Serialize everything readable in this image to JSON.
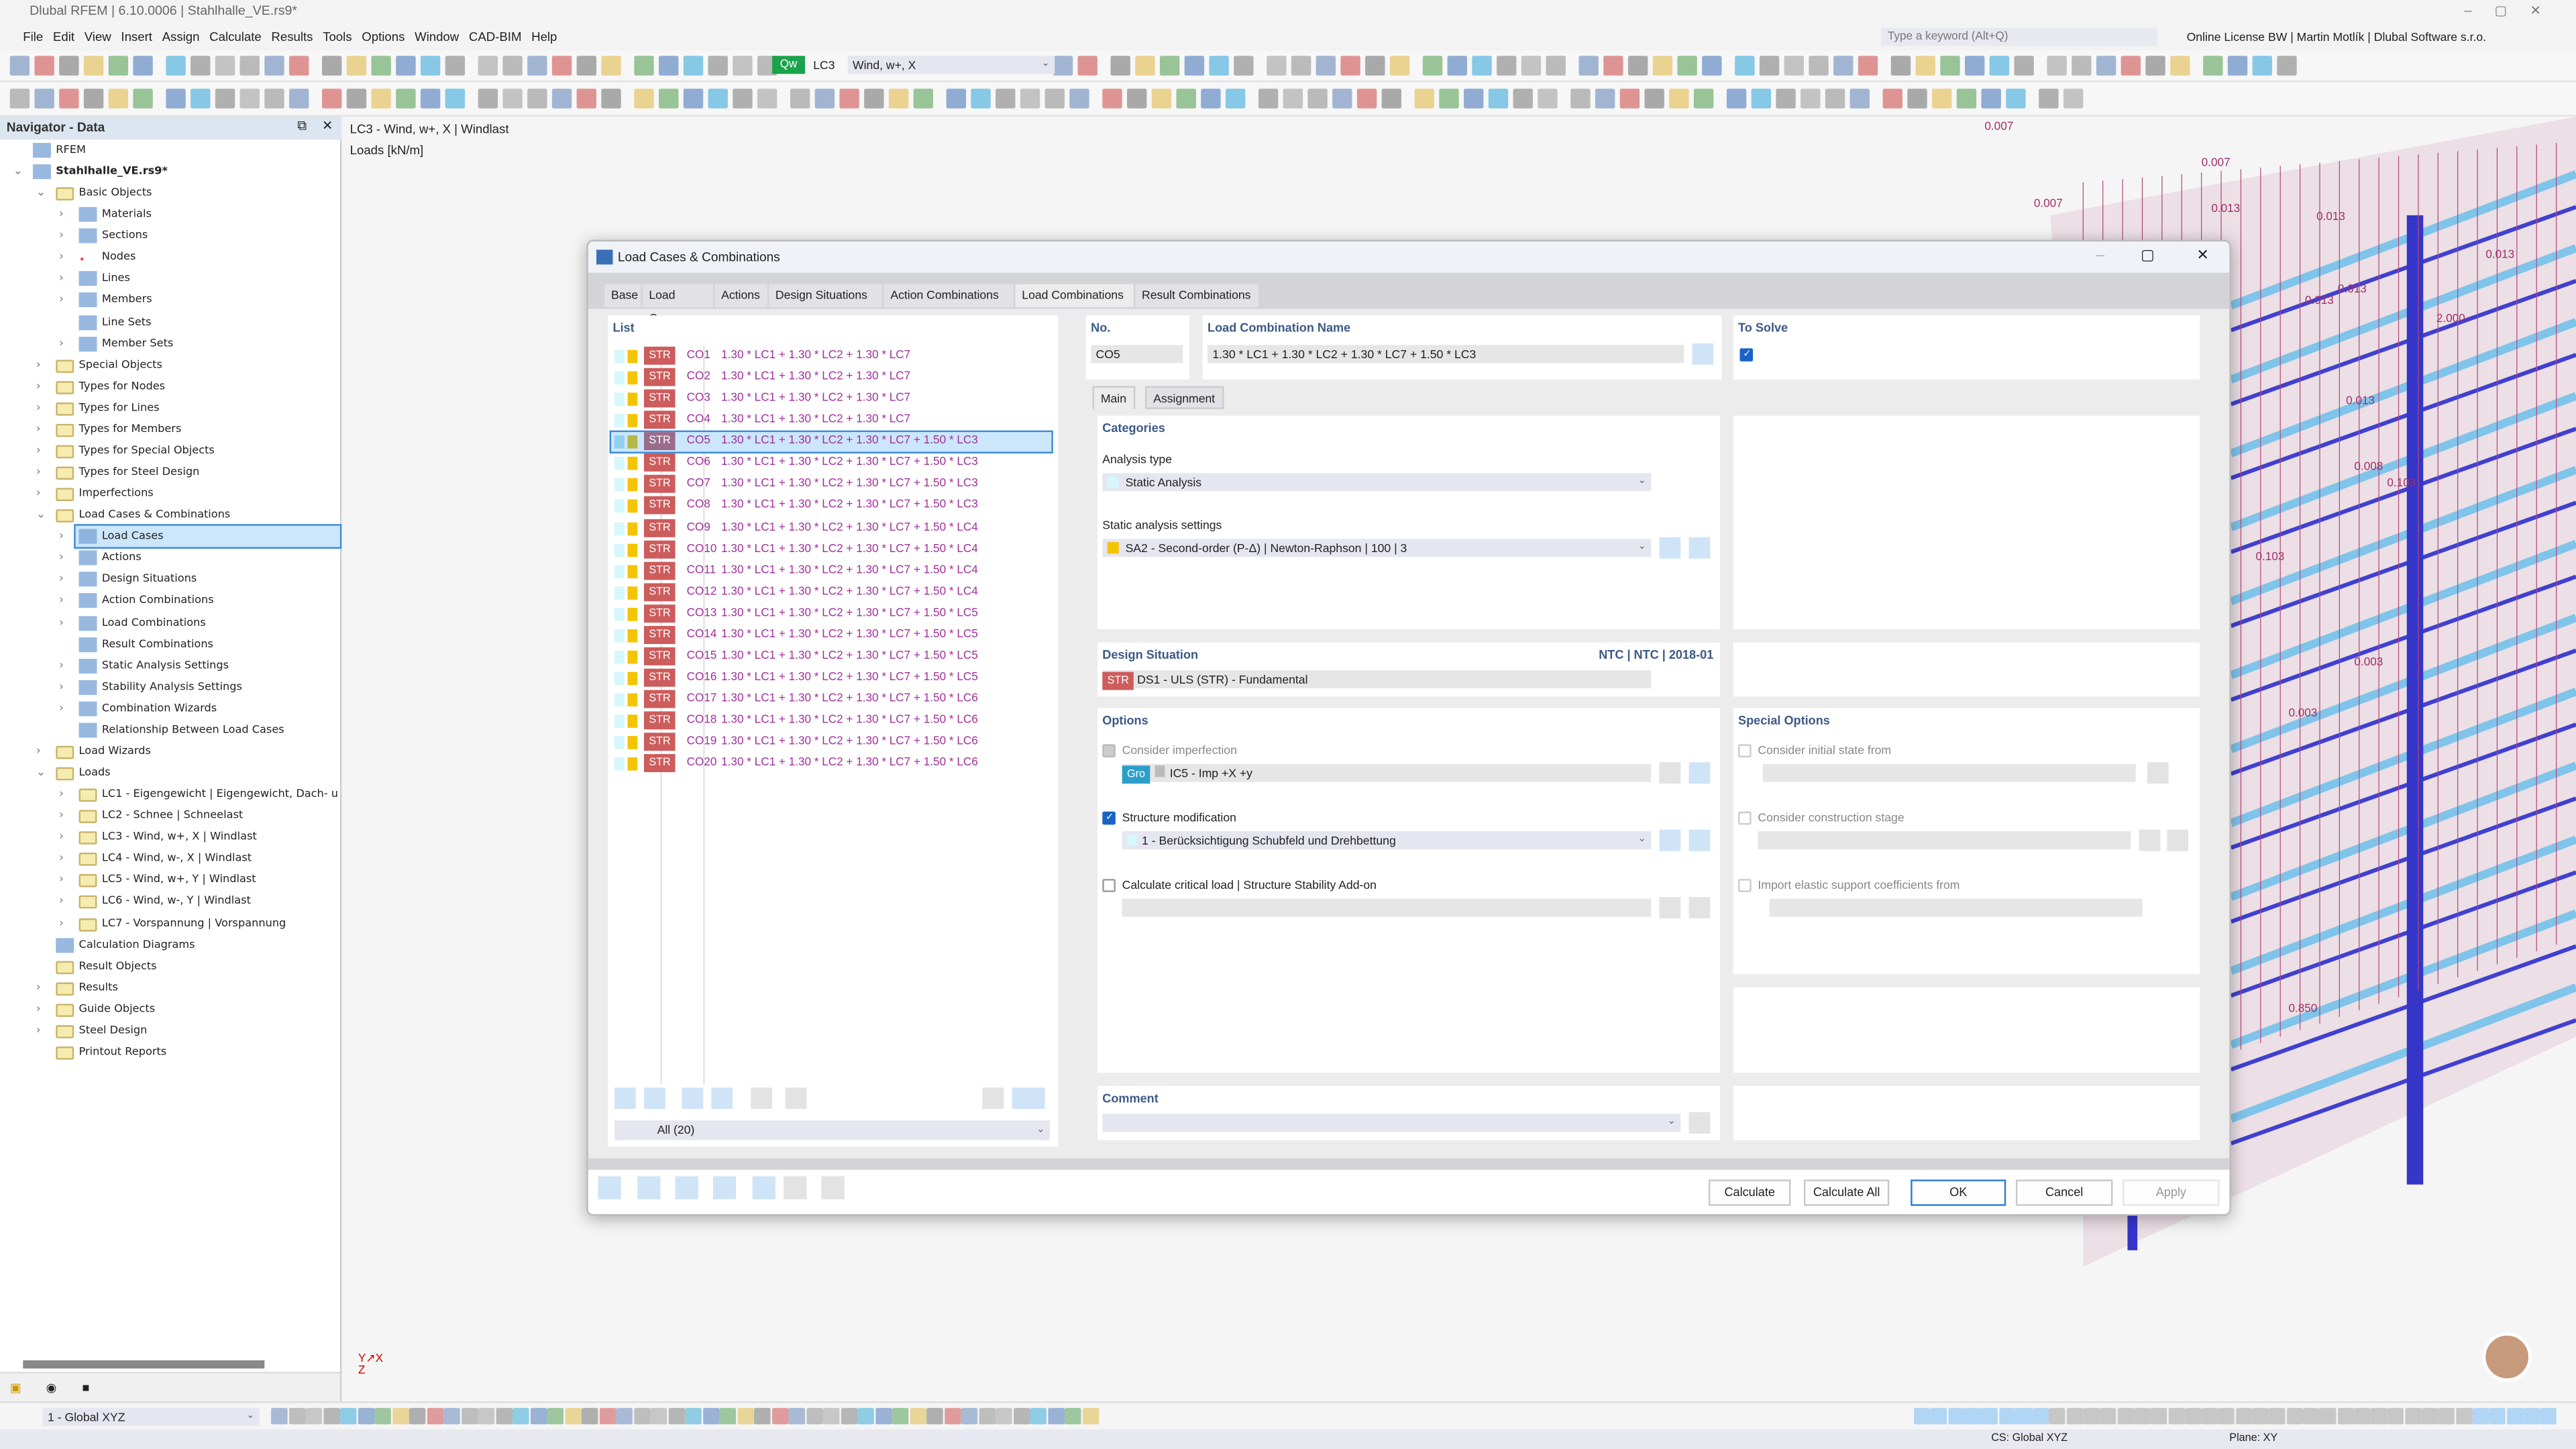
{
  "app": {
    "title": "Dlubal RFEM | 6.10.0006 | Stahlhalle_VE.rs9*",
    "menu": [
      "File",
      "Edit",
      "View",
      "Insert",
      "Assign",
      "Calculate",
      "Results",
      "Tools",
      "Options",
      "Window",
      "CAD-BIM",
      "Help"
    ],
    "search_placeholder": "Type a keyword (Alt+Q)",
    "license": "Online License BW | Martin Motlík | Dlubal Software s.r.o.",
    "lc_badge": "Qw",
    "lc_id": "LC3",
    "lc_name": "Wind, w+, X"
  },
  "navigator": {
    "title": "Navigator - Data",
    "items": [
      {
        "label": "RFEM",
        "lvl": 0,
        "chev": "",
        "icon": "rfem"
      },
      {
        "label": "Stahlhalle_VE.rs9*",
        "lvl": 0,
        "chev": "open",
        "icon": "model",
        "bold": true
      },
      {
        "label": "Basic Objects",
        "lvl": 1,
        "chev": "open",
        "icon": "folder"
      },
      {
        "label": "Materials",
        "lvl": 2,
        "chev": "closed",
        "icon": "materials"
      },
      {
        "label": "Sections",
        "lvl": 2,
        "chev": "closed",
        "icon": "sections"
      },
      {
        "label": "Nodes",
        "lvl": 2,
        "chev": "closed",
        "icon": "nodes"
      },
      {
        "label": "Lines",
        "lvl": 2,
        "chev": "closed",
        "icon": "lines"
      },
      {
        "label": "Members",
        "lvl": 2,
        "chev": "closed",
        "icon": "members"
      },
      {
        "label": "Line Sets",
        "lvl": 2,
        "chev": "",
        "icon": "line-sets"
      },
      {
        "label": "Member Sets",
        "lvl": 2,
        "chev": "closed",
        "icon": "member-sets"
      },
      {
        "label": "Special Objects",
        "lvl": 1,
        "chev": "closed",
        "icon": "folder"
      },
      {
        "label": "Types for Nodes",
        "lvl": 1,
        "chev": "closed",
        "icon": "folder"
      },
      {
        "label": "Types for Lines",
        "lvl": 1,
        "chev": "closed",
        "icon": "folder"
      },
      {
        "label": "Types for Members",
        "lvl": 1,
        "chev": "closed",
        "icon": "folder"
      },
      {
        "label": "Types for Special Objects",
        "lvl": 1,
        "chev": "closed",
        "icon": "folder"
      },
      {
        "label": "Types for Steel Design",
        "lvl": 1,
        "chev": "closed",
        "icon": "folder"
      },
      {
        "label": "Imperfections",
        "lvl": 1,
        "chev": "closed",
        "icon": "folder"
      },
      {
        "label": "Load Cases & Combinations",
        "lvl": 1,
        "chev": "open",
        "icon": "folder"
      },
      {
        "label": "Load Cases",
        "lvl": 2,
        "chev": "closed",
        "icon": "load-cases",
        "selected": true
      },
      {
        "label": "Actions",
        "lvl": 2,
        "chev": "closed",
        "icon": "actions"
      },
      {
        "label": "Design Situations",
        "lvl": 2,
        "chev": "closed",
        "icon": "design-situations"
      },
      {
        "label": "Action Combinations",
        "lvl": 2,
        "chev": "closed",
        "icon": "action-combinations"
      },
      {
        "label": "Load Combinations",
        "lvl": 2,
        "chev": "closed",
        "icon": "load-combinations"
      },
      {
        "label": "Result Combinations",
        "lvl": 2,
        "chev": "",
        "icon": "result-combinations"
      },
      {
        "label": "Static Analysis Settings",
        "lvl": 2,
        "chev": "closed",
        "icon": "static-analysis"
      },
      {
        "label": "Stability Analysis Settings",
        "lvl": 2,
        "chev": "closed",
        "icon": "stability-analysis"
      },
      {
        "label": "Combination Wizards",
        "lvl": 2,
        "chev": "closed",
        "icon": "combination-wizards"
      },
      {
        "label": "Relationship Between Load Cases",
        "lvl": 2,
        "chev": "",
        "icon": "relationship"
      },
      {
        "label": "Load Wizards",
        "lvl": 1,
        "chev": "closed",
        "icon": "folder"
      },
      {
        "label": "Loads",
        "lvl": 1,
        "chev": "open",
        "icon": "folder"
      },
      {
        "label": "LC1 - Eigengewicht | Eigengewicht, Dach- u",
        "lvl": 2,
        "chev": "closed",
        "icon": "folder"
      },
      {
        "label": "LC2 - Schnee | Schneelast",
        "lvl": 2,
        "chev": "closed",
        "icon": "folder"
      },
      {
        "label": "LC3 - Wind, w+, X | Windlast",
        "lvl": 2,
        "chev": "closed",
        "icon": "folder"
      },
      {
        "label": "LC4 - Wind, w-, X | Windlast",
        "lvl": 2,
        "chev": "closed",
        "icon": "folder"
      },
      {
        "label": "LC5 - Wind, w+, Y | Windlast",
        "lvl": 2,
        "chev": "closed",
        "icon": "folder"
      },
      {
        "label": "LC6 - Wind, w-, Y | Windlast",
        "lvl": 2,
        "chev": "closed",
        "icon": "folder"
      },
      {
        "label": "LC7 - Vorspannung | Vorspannung",
        "lvl": 2,
        "chev": "closed",
        "icon": "folder"
      },
      {
        "label": "Calculation Diagrams",
        "lvl": 1,
        "chev": "",
        "icon": "diagram"
      },
      {
        "label": "Result Objects",
        "lvl": 1,
        "chev": "",
        "icon": "folder"
      },
      {
        "label": "Results",
        "lvl": 1,
        "chev": "closed",
        "icon": "folder"
      },
      {
        "label": "Guide Objects",
        "lvl": 1,
        "chev": "closed",
        "icon": "folder"
      },
      {
        "label": "Steel Design",
        "lvl": 1,
        "chev": "closed",
        "icon": "folder"
      },
      {
        "label": "Printout Reports",
        "lvl": 1,
        "chev": "",
        "icon": "folder"
      }
    ],
    "view_select": "1 - Global XYZ"
  },
  "viewport": {
    "title": "LC3 - Wind, w+, X | Windlast",
    "subtitle": "Loads [kN/m]",
    "load_labels": [
      "0.007",
      "0.007",
      "0.007",
      "0.013",
      "0.013",
      "0.013",
      "0.013",
      "0.013",
      "2.000",
      "0.013",
      "0.013",
      "0.008",
      "0.103",
      "0.008",
      "0.103",
      "0.003",
      "0.003",
      "0.850"
    ]
  },
  "dialog": {
    "title": "Load Cases & Combinations",
    "tabs": [
      "Base",
      "Load Cases",
      "Actions",
      "Design Situations",
      "Action Combinations",
      "Load Combinations",
      "Result Combinations"
    ],
    "active_tab": 5,
    "list_header": "List",
    "list": [
      {
        "no": "CO1",
        "formula": "1.30 * LC1 + 1.30 * LC2 + 1.30 * LC7"
      },
      {
        "no": "CO2",
        "formula": "1.30 * LC1 + 1.30 * LC2 + 1.30 * LC7"
      },
      {
        "no": "CO3",
        "formula": "1.30 * LC1 + 1.30 * LC2 + 1.30 * LC7"
      },
      {
        "no": "CO4",
        "formula": "1.30 * LC1 + 1.30 * LC2 + 1.30 * LC7"
      },
      {
        "no": "CO5",
        "formula": "1.30 * LC1 + 1.30 * LC2 + 1.30 * LC7 + 1.50 * LC3",
        "selected": true
      },
      {
        "no": "CO6",
        "formula": "1.30 * LC1 + 1.30 * LC2 + 1.30 * LC7 + 1.50 * LC3"
      },
      {
        "no": "CO7",
        "formula": "1.30 * LC1 + 1.30 * LC2 + 1.30 * LC7 + 1.50 * LC3"
      },
      {
        "no": "CO8",
        "formula": "1.30 * LC1 + 1.30 * LC2 + 1.30 * LC7 + 1.50 * LC3"
      },
      {
        "no": "CO9",
        "formula": "1.30 * LC1 + 1.30 * LC2 + 1.30 * LC7 + 1.50 * LC4"
      },
      {
        "no": "CO10",
        "formula": "1.30 * LC1 + 1.30 * LC2 + 1.30 * LC7 + 1.50 * LC4"
      },
      {
        "no": "CO11",
        "formula": "1.30 * LC1 + 1.30 * LC2 + 1.30 * LC7 + 1.50 * LC4"
      },
      {
        "no": "CO12",
        "formula": "1.30 * LC1 + 1.30 * LC2 + 1.30 * LC7 + 1.50 * LC4"
      },
      {
        "no": "CO13",
        "formula": "1.30 * LC1 + 1.30 * LC2 + 1.30 * LC7 + 1.50 * LC5"
      },
      {
        "no": "CO14",
        "formula": "1.30 * LC1 + 1.30 * LC2 + 1.30 * LC7 + 1.50 * LC5"
      },
      {
        "no": "CO15",
        "formula": "1.30 * LC1 + 1.30 * LC2 + 1.30 * LC7 + 1.50 * LC5"
      },
      {
        "no": "CO16",
        "formula": "1.30 * LC1 + 1.30 * LC2 + 1.30 * LC7 + 1.50 * LC5"
      },
      {
        "no": "CO17",
        "formula": "1.30 * LC1 + 1.30 * LC2 + 1.30 * LC7 + 1.50 * LC6"
      },
      {
        "no": "CO18",
        "formula": "1.30 * LC1 + 1.30 * LC2 + 1.30 * LC7 + 1.50 * LC6"
      },
      {
        "no": "CO19",
        "formula": "1.30 * LC1 + 1.30 * LC2 + 1.30 * LC7 + 1.50 * LC6"
      },
      {
        "no": "CO20",
        "formula": "1.30 * LC1 + 1.30 * LC2 + 1.30 * LC7 + 1.50 * LC6"
      }
    ],
    "badge": "STR",
    "filter": "All (20)",
    "no_label": "No.",
    "no_value": "CO5",
    "name_label": "Load Combination Name",
    "name_value": "1.30 * LC1 + 1.30 * LC2 + 1.30 * LC7 + 1.50 * LC3",
    "to_solve_label": "To Solve",
    "to_solve": true,
    "subtabs": [
      "Main",
      "Assignment"
    ],
    "categories": {
      "title": "Categories",
      "analysis_type_label": "Analysis type",
      "analysis_type": "Static Analysis",
      "static_settings_label": "Static analysis settings",
      "static_settings": "SA2 - Second-order (P-Δ) | Newton-Raphson | 100 | 3"
    },
    "design_situation": {
      "title": "Design Situation",
      "standard": "NTC | NTC | 2018-01",
      "badge": "STR",
      "value": "DS1 - ULS (STR) - Fundamental"
    },
    "options": {
      "title": "Options",
      "imperfection": {
        "label": "Consider imperfection",
        "checked": true,
        "disabled": true,
        "badge": "Gro",
        "value": "IC5 - Imp +X +y"
      },
      "structure_mod": {
        "label": "Structure modification",
        "checked": true,
        "value": "1 - Berücksichtigung Schubfeld und Drehbettung"
      },
      "critical_load": {
        "label": "Calculate critical load | Structure Stability Add-on",
        "checked": false
      }
    },
    "special_options": {
      "title": "Special Options",
      "initial_state": "Consider initial state from",
      "construction_stage": "Consider construction stage",
      "elastic_support": "Import elastic support coefficients from"
    },
    "comment_label": "Comment",
    "buttons": {
      "calculate": "Calculate",
      "calculate_all": "Calculate All",
      "ok": "OK",
      "cancel": "Cancel",
      "apply": "Apply"
    }
  },
  "status": {
    "cs": "CS: Global XYZ",
    "plane": "Plane: XY"
  },
  "colors": {
    "accent": "#1b62c7",
    "str_badge": "#cd5c5c",
    "formula": "#a0309c",
    "heading": "#3d5a85",
    "qw_badge": "#1aa34a",
    "gro_badge": "#2b9fc9"
  }
}
